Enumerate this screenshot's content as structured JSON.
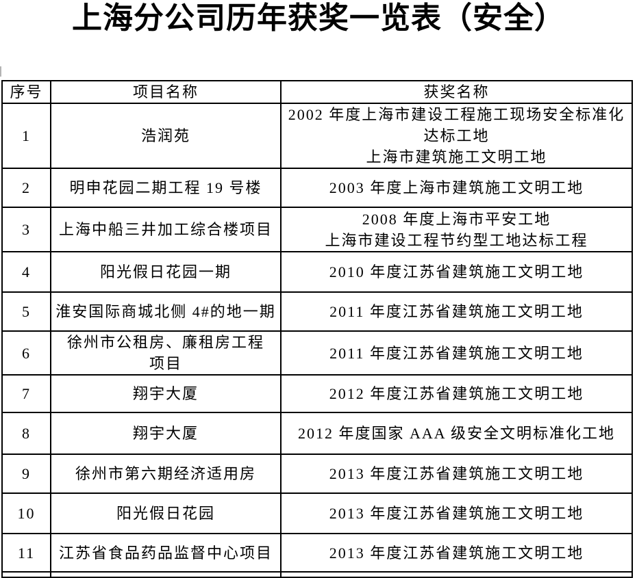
{
  "page": {
    "title": "上海分公司历年获奖一览表（安全）"
  },
  "table": {
    "headers": {
      "num": "序号",
      "project": "项目名称",
      "award": "获奖名称"
    },
    "rows": [
      {
        "num": "1",
        "project": [
          "浩润苑"
        ],
        "award": [
          "2002 年度上海市建设工程施工现场安全标准化",
          "达标工地",
          "上海市建筑施工文明工地"
        ]
      },
      {
        "num": "2",
        "project": [
          "明申花园二期工程 19 号楼"
        ],
        "award": [
          "2003 年度上海市建筑施工文明工地"
        ]
      },
      {
        "num": "3",
        "project": [
          "上海中船三井加工综合楼项目"
        ],
        "award": [
          "2008 年度上海市平安工地",
          "上海市建设工程节约型工地达标工程"
        ]
      },
      {
        "num": "4",
        "project": [
          "阳光假日花园一期"
        ],
        "award": [
          "2010 年度江苏省建筑施工文明工地"
        ]
      },
      {
        "num": "5",
        "project": [
          "淮安国际商城北侧 4#的地一期"
        ],
        "award": [
          "2011 年度江苏省建筑施工文明工地"
        ]
      },
      {
        "num": "6",
        "project": [
          "徐州市公租房、廉租房工程",
          "项目"
        ],
        "award": [
          "2011 年度江苏省建筑施工文明工地"
        ]
      },
      {
        "num": "7",
        "project": [
          "翔宇大厦"
        ],
        "award": [
          "2012 年度江苏省建筑施工文明工地"
        ]
      },
      {
        "num": "8",
        "project": [
          "翔宇大厦"
        ],
        "award": [
          "2012 年度国家 AAA 级安全文明标准化工地"
        ]
      },
      {
        "num": "9",
        "project": [
          "徐州市第六期经济适用房"
        ],
        "award": [
          "2013 年度江苏省建筑施工文明工地"
        ]
      },
      {
        "num": "10",
        "project": [
          "阳光假日花园"
        ],
        "award": [
          "2013 年度江苏省建筑施工文明工地"
        ]
      },
      {
        "num": "11",
        "project": [
          "江苏省食品药品监督中心项目"
        ],
        "award": [
          "2013 年度江苏省建筑施工文明工地"
        ]
      }
    ]
  }
}
